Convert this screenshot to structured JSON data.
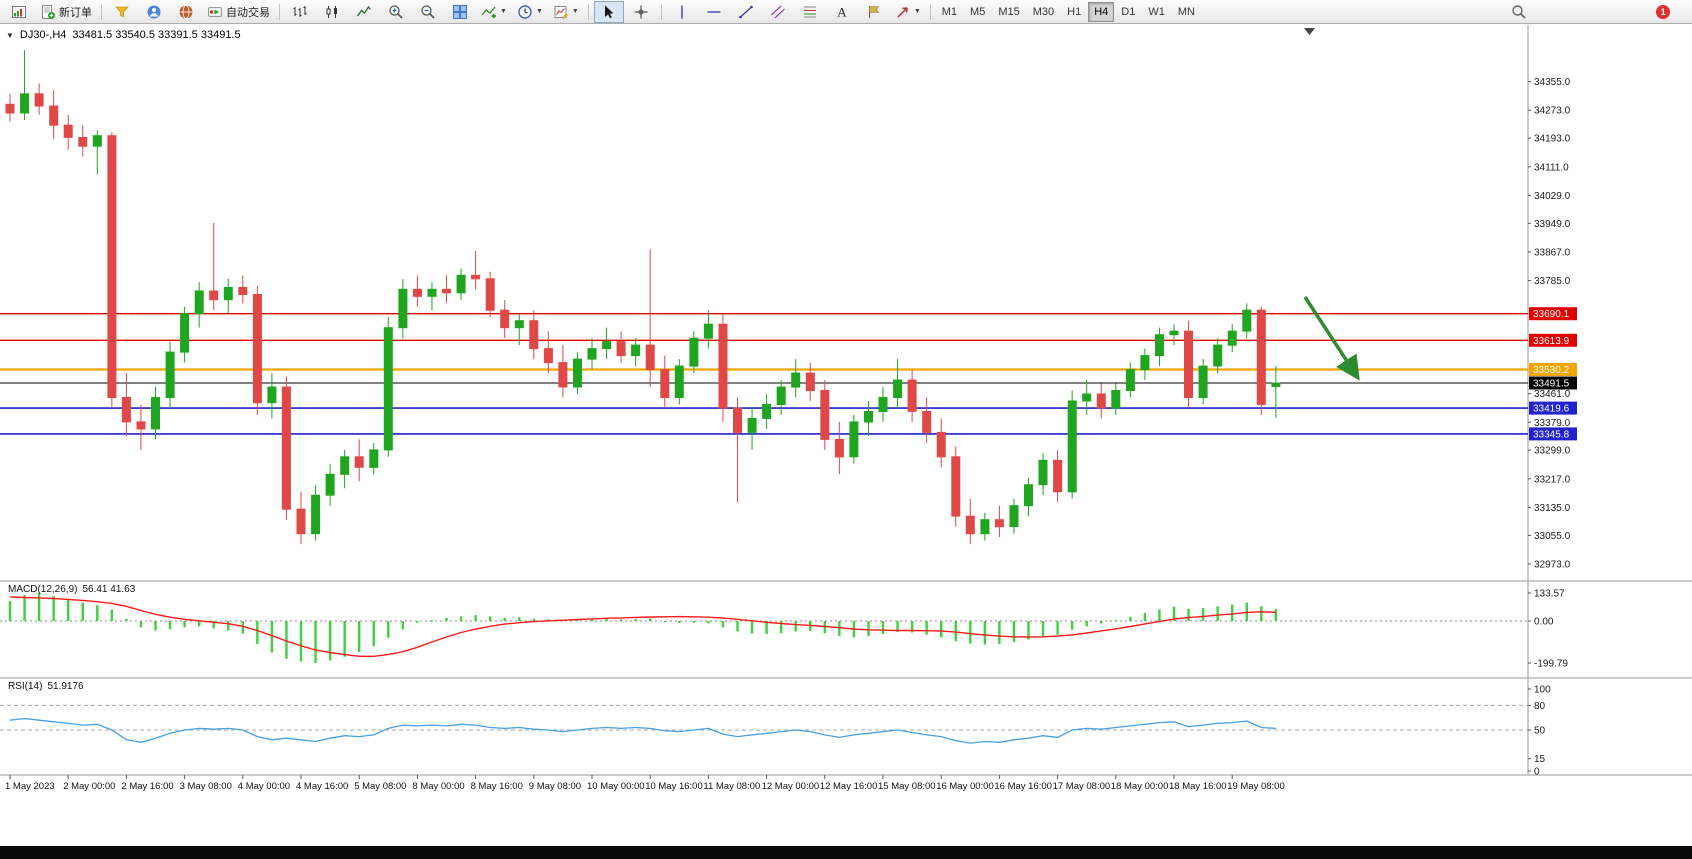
{
  "toolbar": {
    "new_order_label": "新订单",
    "autotrading_label": "自动交易",
    "icons": {
      "text_tool": "A"
    },
    "timeframes": [
      "M1",
      "M5",
      "M15",
      "M30",
      "H1",
      "H4",
      "D1",
      "W1",
      "MN"
    ],
    "active_timeframe": "H4",
    "notification_count": "1"
  },
  "chart_header": {
    "symbol_period": "DJ30-,H4",
    "ohlc": "33481.5 33540.5 33391.5 33491.5"
  },
  "colors": {
    "bull": "#1fa51f",
    "bear": "#e04848",
    "macd_hist": "#3fd03f",
    "macd_signal": "#ff1a1a",
    "rsi_line": "#4a9fe0",
    "arrow": "#2e8b2e",
    "axis_text": "#1a1a1a"
  },
  "chart_data": {
    "type": "candlestick",
    "symbol": "DJ30-",
    "timeframe": "H4",
    "main": {
      "view_range": {
        "price_min": 32930,
        "price_max": 34500
      },
      "y_axis_labels": [
        "34355.0",
        "34273.0",
        "34193.0",
        "34111.0",
        "34029.0",
        "33949.0",
        "33867.0",
        "33785.0",
        "33461.0",
        "33379.0",
        "33299.0",
        "33217.0",
        "33135.0",
        "33055.0",
        "32973.0"
      ],
      "hlines": [
        {
          "price": 33690.1,
          "label": "33690.1",
          "color": "#e00000",
          "width": 1.4
        },
        {
          "price": 33613.9,
          "label": "33613.9",
          "color": "#e00000",
          "width": 1.4
        },
        {
          "price": 33530.2,
          "label": "33530.2",
          "color": "#f0a500",
          "width": 2.2
        },
        {
          "price": 33491.5,
          "label": "33491.5",
          "color": "#000000",
          "width": 1
        },
        {
          "price": 33419.6,
          "label": "33419.6",
          "color": "#2222cc",
          "width": 1.6
        },
        {
          "price": 33345.8,
          "label": "33345.8",
          "color": "#2222cc",
          "width": 1.6
        }
      ],
      "x_label_step": 4,
      "x_labels": [
        "1 May 2023",
        "2 May 00:00",
        "2 May 16:00",
        "3 May 08:00",
        "4 May 00:00",
        "4 May 16:00",
        "5 May 08:00",
        "8 May 00:00",
        "8 May 16:00",
        "9 May 08:00",
        "10 May 00:00",
        "10 May 16:00",
        "11 May 08:00",
        "12 May 00:00",
        "12 May 16:00",
        "15 May 08:00",
        "16 May 00:00",
        "16 May 16:00",
        "17 May 08:00",
        "18 May 00:00",
        "18 May 16:00",
        "19 May 08:00"
      ],
      "candles": [
        [
          34290,
          34320,
          34240,
          34265
        ],
        [
          34265,
          34445,
          34245,
          34320
        ],
        [
          34320,
          34350,
          34260,
          34285
        ],
        [
          34285,
          34330,
          34190,
          34230
        ],
        [
          34230,
          34260,
          34160,
          34195
        ],
        [
          34195,
          34230,
          34140,
          34170
        ],
        [
          34170,
          34215,
          34090,
          34200
        ],
        [
          34200,
          34210,
          33420,
          33450
        ],
        [
          33450,
          33520,
          33340,
          33380
        ],
        [
          33380,
          33430,
          33300,
          33360
        ],
        [
          33360,
          33480,
          33330,
          33450
        ],
        [
          33450,
          33610,
          33420,
          33580
        ],
        [
          33580,
          33710,
          33550,
          33690
        ],
        [
          33690,
          33780,
          33650,
          33755
        ],
        [
          33755,
          33950,
          33700,
          33730
        ],
        [
          33730,
          33790,
          33690,
          33765
        ],
        [
          33765,
          33800,
          33720,
          33745
        ],
        [
          33745,
          33770,
          33400,
          33435
        ],
        [
          33435,
          33520,
          33390,
          33480
        ],
        [
          33480,
          33510,
          33100,
          33130
        ],
        [
          33130,
          33180,
          33030,
          33060
        ],
        [
          33060,
          33200,
          33040,
          33170
        ],
        [
          33170,
          33260,
          33140,
          33230
        ],
        [
          33230,
          33300,
          33190,
          33280
        ],
        [
          33280,
          33330,
          33210,
          33250
        ],
        [
          33250,
          33320,
          33230,
          33300
        ],
        [
          33300,
          33680,
          33280,
          33650
        ],
        [
          33650,
          33790,
          33620,
          33760
        ],
        [
          33760,
          33800,
          33710,
          33740
        ],
        [
          33740,
          33780,
          33700,
          33760
        ],
        [
          33760,
          33800,
          33720,
          33750
        ],
        [
          33750,
          33820,
          33730,
          33800
        ],
        [
          33800,
          33870,
          33760,
          33790
        ],
        [
          33790,
          33810,
          33680,
          33700
        ],
        [
          33700,
          33730,
          33620,
          33650
        ],
        [
          33650,
          33690,
          33600,
          33670
        ],
        [
          33670,
          33700,
          33560,
          33590
        ],
        [
          33590,
          33640,
          33520,
          33550
        ],
        [
          33550,
          33600,
          33450,
          33480
        ],
        [
          33480,
          33580,
          33460,
          33560
        ],
        [
          33560,
          33620,
          33530,
          33590
        ],
        [
          33590,
          33650,
          33560,
          33610
        ],
        [
          33610,
          33640,
          33550,
          33570
        ],
        [
          33570,
          33620,
          33540,
          33600
        ],
        [
          33600,
          33875,
          33480,
          33530
        ],
        [
          33530,
          33570,
          33420,
          33450
        ],
        [
          33450,
          33560,
          33430,
          33540
        ],
        [
          33540,
          33640,
          33520,
          33620
        ],
        [
          33620,
          33700,
          33590,
          33660
        ],
        [
          33660,
          33690,
          33380,
          33420
        ],
        [
          33420,
          33450,
          33150,
          33350
        ],
        [
          33350,
          33420,
          33300,
          33390
        ],
        [
          33390,
          33460,
          33360,
          33430
        ],
        [
          33430,
          33500,
          33400,
          33480
        ],
        [
          33480,
          33560,
          33450,
          33520
        ],
        [
          33520,
          33550,
          33440,
          33470
        ],
        [
          33470,
          33500,
          33300,
          33330
        ],
        [
          33330,
          33380,
          33230,
          33280
        ],
        [
          33280,
          33400,
          33260,
          33380
        ],
        [
          33380,
          33440,
          33340,
          33410
        ],
        [
          33410,
          33480,
          33380,
          33450
        ],
        [
          33450,
          33560,
          33420,
          33500
        ],
        [
          33500,
          33530,
          33380,
          33410
        ],
        [
          33410,
          33450,
          33320,
          33350
        ],
        [
          33350,
          33390,
          33250,
          33280
        ],
        [
          33280,
          33310,
          33080,
          33110
        ],
        [
          33110,
          33160,
          33030,
          33060
        ],
        [
          33060,
          33120,
          33040,
          33100
        ],
        [
          33100,
          33140,
          33050,
          33080
        ],
        [
          33080,
          33160,
          33060,
          33140
        ],
        [
          33140,
          33220,
          33110,
          33200
        ],
        [
          33200,
          33290,
          33170,
          33270
        ],
        [
          33270,
          33300,
          33150,
          33180
        ],
        [
          33180,
          33470,
          33160,
          33440
        ],
        [
          33440,
          33500,
          33400,
          33460
        ],
        [
          33460,
          33490,
          33390,
          33420
        ],
        [
          33420,
          33490,
          33400,
          33470
        ],
        [
          33470,
          33550,
          33450,
          33530
        ],
        [
          33530,
          33590,
          33500,
          33570
        ],
        [
          33570,
          33650,
          33540,
          33630
        ],
        [
          33630,
          33660,
          33600,
          33640
        ],
        [
          33640,
          33670,
          33420,
          33450
        ],
        [
          33450,
          33560,
          33430,
          33540
        ],
        [
          33540,
          33620,
          33520,
          33600
        ],
        [
          33600,
          33660,
          33580,
          33640
        ],
        [
          33640,
          33720,
          33620,
          33700
        ],
        [
          33700,
          33710,
          33400,
          33430
        ],
        [
          33481.5,
          33540.5,
          33391.5,
          33491.5
        ]
      ],
      "arrow_annotation": {
        "from": {
          "bar": 89,
          "price": 33738
        },
        "to": {
          "bar": 92.5,
          "price": 33515
        }
      }
    },
    "macd": {
      "label": "MACD(12,26,9)",
      "current_values": "56.41 41.63",
      "axis_labels": [
        "133.57",
        "0.00",
        "-199.79"
      ],
      "histogram": [
        95,
        125,
        133.57,
        118,
        100,
        88,
        75,
        55,
        10,
        -30,
        -45,
        -40,
        -30,
        -25,
        -35,
        -45,
        -60,
        -110,
        -150,
        -180,
        -193,
        -199.79,
        -188,
        -170,
        -148,
        -120,
        -80,
        -40,
        -8,
        5,
        15,
        22,
        28,
        22,
        15,
        18,
        12,
        8,
        2,
        5,
        8,
        10,
        8,
        10,
        12,
        -5,
        -10,
        -8,
        -12,
        -30,
        -50,
        -60,
        -62,
        -58,
        -50,
        -48,
        -58,
        -72,
        -78,
        -72,
        -62,
        -52,
        -55,
        -65,
        -78,
        -95,
        -108,
        -112,
        -110,
        -100,
        -88,
        -75,
        -65,
        -42,
        -25,
        -12,
        5,
        20,
        38,
        55,
        68,
        58,
        62,
        70,
        78,
        88,
        70,
        56.41
      ],
      "signal": [
        115,
        112,
        110,
        107,
        103,
        98,
        92,
        84,
        70,
        50,
        32,
        18,
        8,
        1,
        -6,
        -13,
        -25,
        -45,
        -70,
        -95,
        -118,
        -138,
        -150,
        -160,
        -168,
        -168,
        -160,
        -146,
        -125,
        -100,
        -76,
        -55,
        -38,
        -25,
        -15,
        -8,
        -3,
        1,
        4,
        7,
        10,
        13,
        15,
        17,
        19,
        20,
        21,
        20,
        18,
        14,
        8,
        1,
        -6,
        -12,
        -17,
        -21,
        -26,
        -32,
        -38,
        -42,
        -44,
        -45,
        -45,
        -46,
        -48,
        -53,
        -60,
        -67,
        -72,
        -75,
        -76,
        -75,
        -72,
        -66,
        -57,
        -47,
        -37,
        -26,
        -14,
        -2,
        9,
        16,
        22,
        28,
        34,
        41,
        44,
        41.63
      ]
    },
    "rsi": {
      "label": "RSI(14)",
      "current_value": "51.9176",
      "axis_labels": [
        "100",
        "80",
        "50",
        "15",
        "0"
      ],
      "levels": [
        80,
        50
      ],
      "series": [
        62,
        64,
        62,
        60,
        58,
        56,
        57,
        50,
        38,
        35,
        40,
        46,
        50,
        52,
        51,
        52,
        50,
        42,
        38,
        40,
        38,
        36,
        40,
        43,
        42,
        44,
        52,
        56,
        55,
        56,
        55,
        57,
        56,
        53,
        52,
        53,
        51,
        50,
        48,
        50,
        52,
        53,
        52,
        53,
        52,
        49,
        48,
        50,
        52,
        45,
        42,
        44,
        46,
        48,
        50,
        48,
        44,
        41,
        44,
        46,
        48,
        50,
        47,
        44,
        42,
        37,
        34,
        36,
        35,
        38,
        40,
        43,
        41,
        50,
        52,
        51,
        53,
        55,
        57,
        59,
        60,
        54,
        56,
        58,
        59,
        61,
        53,
        51.92
      ]
    }
  }
}
